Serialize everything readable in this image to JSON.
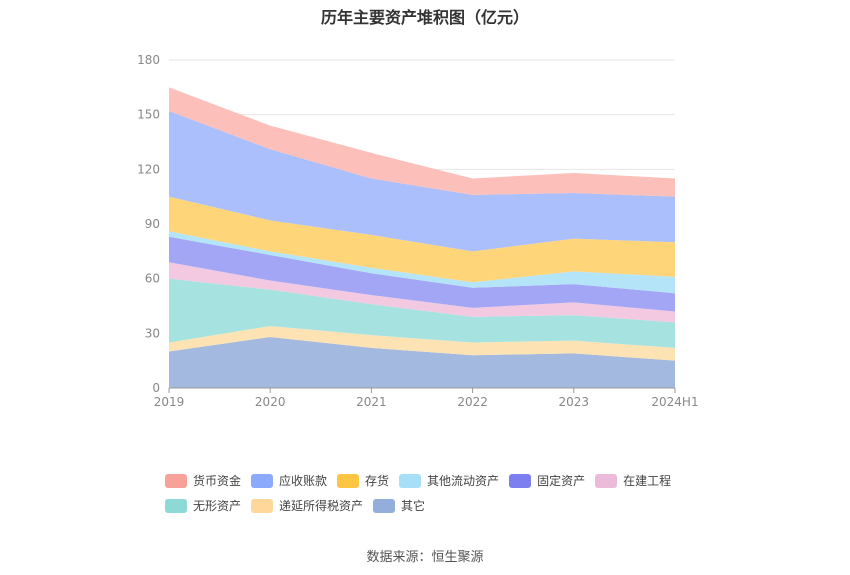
{
  "chart_data": {
    "type": "area",
    "stacked": true,
    "title": "历年主要资产堆积图（亿元）",
    "source": "数据来源：恒生聚源",
    "categories": [
      "2019",
      "2020",
      "2021",
      "2022",
      "2023",
      "2024H1"
    ],
    "ylim": [
      0,
      180
    ],
    "yticks": [
      0,
      30,
      60,
      90,
      120,
      150,
      180
    ],
    "grid": true,
    "legend_position": "bottom",
    "series": [
      {
        "name": "其它",
        "color": "#a3b9df",
        "values": [
          20,
          28,
          22,
          18,
          19,
          15
        ]
      },
      {
        "name": "递延所得税资产",
        "color": "#fde2b4",
        "values": [
          5,
          6,
          7,
          7,
          7,
          7
        ]
      },
      {
        "name": "无形资产",
        "color": "#a6e3e0",
        "values": [
          35,
          20,
          17,
          14,
          14,
          14
        ]
      },
      {
        "name": "在建工程",
        "color": "#f2c9e1",
        "values": [
          9,
          5,
          5,
          5,
          7,
          6
        ]
      },
      {
        "name": "固定资产",
        "color": "#a3a6f5",
        "values": [
          14,
          14,
          12,
          11,
          10,
          10
        ]
      },
      {
        "name": "其他流动资产",
        "color": "#b3e4f8",
        "values": [
          3,
          2,
          3,
          3,
          7,
          9
        ]
      },
      {
        "name": "存货",
        "color": "#ffd57a",
        "values": [
          19,
          17,
          18,
          17,
          18,
          19
        ]
      },
      {
        "name": "应收账款",
        "color": "#aabffc",
        "values": [
          47,
          39,
          31,
          31,
          25,
          25
        ]
      },
      {
        "name": "货币资金",
        "color": "#fdbfb9",
        "values": [
          13,
          13,
          14,
          9,
          11,
          10
        ]
      }
    ],
    "legend_order": [
      "货币资金",
      "应收账款",
      "存货",
      "其他流动资产",
      "固定资产",
      "在建工程",
      "无形资产",
      "递延所得税资产",
      "其它"
    ],
    "legend_colors": {
      "货币资金": "#f7a199",
      "应收账款": "#8caafb",
      "存货": "#fdc542",
      "其他流动资产": "#a6dff7",
      "固定资产": "#7d7ff0",
      "在建工程": "#ebbbd9",
      "无形资产": "#8cd9d5",
      "递延所得税资产": "#fed89a",
      "其它": "#93aedb"
    }
  }
}
